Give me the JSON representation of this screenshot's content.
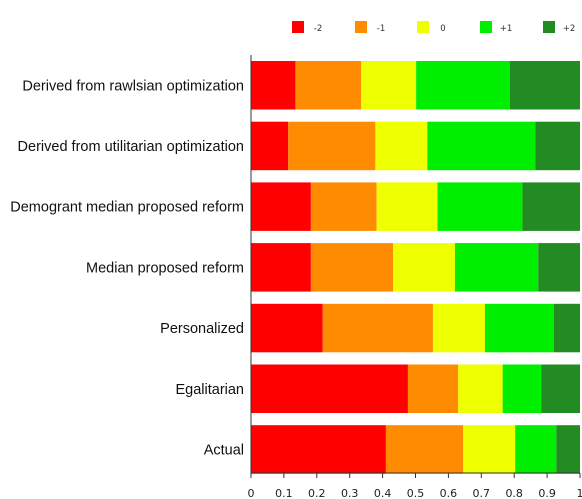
{
  "chart_data": {
    "type": "bar",
    "orientation": "horizontal",
    "stacked": true,
    "title": "",
    "xlabel": "",
    "ylabel": "",
    "xlim": [
      0,
      1
    ],
    "x_ticks": [
      "0",
      "0.1",
      "0.2",
      "0.3",
      "0.4",
      "0.5",
      "0.6",
      "0.7",
      "0.8",
      "0.9",
      "1"
    ],
    "grid": false,
    "legend_position": "top",
    "categories": [
      "Derived from rawlsian optimization",
      "Derived from utilitarian optimization",
      "Demogrant median proposed reform",
      "Median proposed reform",
      "Personalized",
      "Egalitarian",
      "Actual"
    ],
    "series": [
      {
        "name": "-2",
        "color": "#ff0000",
        "values": [
          0.135,
          0.113,
          0.182,
          0.182,
          0.218,
          0.477,
          0.41
        ]
      },
      {
        "name": "-1",
        "color": "#ff8c00",
        "values": [
          0.2,
          0.265,
          0.2,
          0.25,
          0.335,
          0.153,
          0.235
        ]
      },
      {
        "name": "0",
        "color": "#eeff00",
        "values": [
          0.167,
          0.158,
          0.185,
          0.188,
          0.158,
          0.135,
          0.158
        ]
      },
      {
        "name": "+1",
        "color": "#00ee00",
        "values": [
          0.285,
          0.328,
          0.258,
          0.253,
          0.21,
          0.117,
          0.125
        ]
      },
      {
        "name": "+2",
        "color": "#228b22",
        "values": [
          0.213,
          0.136,
          0.175,
          0.127,
          0.079,
          0.118,
          0.072
        ]
      }
    ]
  }
}
